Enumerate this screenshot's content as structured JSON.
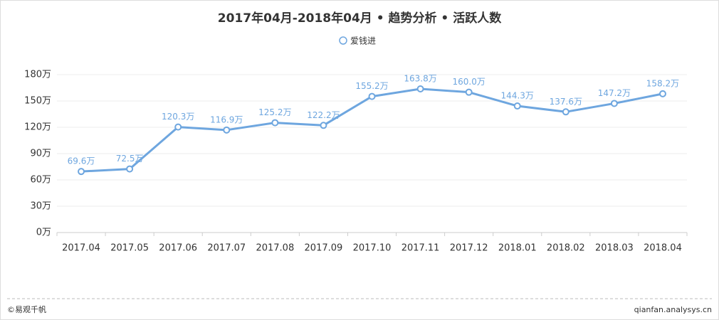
{
  "chart_data": {
    "type": "line",
    "title": "2017年04月-2018年04月 • 趋势分析 • 活跃人数",
    "categories": [
      "2017.04",
      "2017.05",
      "2017.06",
      "2017.07",
      "2017.08",
      "2017.09",
      "2017.10",
      "2017.11",
      "2017.12",
      "2018.01",
      "2018.02",
      "2018.03",
      "2018.04"
    ],
    "series": [
      {
        "name": "爱钱进",
        "color": "#6ea6df",
        "values": [
          69.6,
          72.5,
          120.3,
          116.9,
          125.2,
          122.2,
          155.2,
          163.8,
          160.0,
          144.3,
          137.6,
          147.2,
          158.2
        ],
        "value_labels": [
          "69.6万",
          "72.5万",
          "120.3万",
          "116.9万",
          "125.2万",
          "122.2万",
          "155.2万",
          "163.8万",
          "160.0万",
          "144.3万",
          "137.6万",
          "147.2万",
          "158.2万"
        ]
      }
    ],
    "ylim": [
      0,
      180
    ],
    "yticks": [
      {
        "value": 0,
        "label": "0万"
      },
      {
        "value": 30,
        "label": "30万"
      },
      {
        "value": 60,
        "label": "60万"
      },
      {
        "value": 90,
        "label": "90万"
      },
      {
        "value": 120,
        "label": "120万"
      },
      {
        "value": 150,
        "label": "150万"
      },
      {
        "value": 180,
        "label": "180万"
      }
    ],
    "grid": true,
    "legend": "top",
    "footer_left": "©易观千帆",
    "footer_right": "qianfan.analysys.cn"
  }
}
